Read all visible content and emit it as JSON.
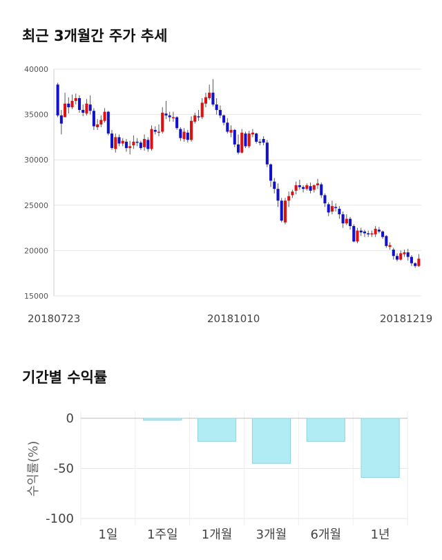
{
  "titles": {
    "candle": "최근 3개월간 주가 추세",
    "returns": "기간별 수익률"
  },
  "colors": {
    "up": "#dd1111",
    "down": "#1111cc",
    "wick": "#555555",
    "bar_fill": "#b1ebf4",
    "bar_stroke": "#8fd3e3",
    "grid": "#e6e6e6"
  },
  "chart_data": [
    {
      "type": "candlestick",
      "title": "최근 3개월간 주가 추세",
      "ylim": [
        15000,
        40000
      ],
      "yticks": [
        40000,
        35000,
        30000,
        25000,
        20000,
        15000
      ],
      "x_labels": [
        "20180723",
        "20181010",
        "20181219"
      ],
      "grid": true,
      "candles": [
        [
          38300,
          34900,
          38500,
          34700
        ],
        [
          34900,
          34000,
          35500,
          32800
        ],
        [
          34700,
          36200,
          37400,
          34700
        ],
        [
          36200,
          35800,
          36900,
          35100
        ],
        [
          35800,
          36500,
          37200,
          35600
        ],
        [
          36500,
          36800,
          37300,
          36100
        ],
        [
          36800,
          35500,
          37100,
          35200
        ],
        [
          35500,
          35200,
          36100,
          34800
        ],
        [
          35100,
          36200,
          36700,
          34900
        ],
        [
          36100,
          35400,
          37100,
          35000
        ],
        [
          35400,
          33700,
          35700,
          33300
        ],
        [
          33600,
          33900,
          34500,
          33300
        ],
        [
          33900,
          34400,
          34900,
          33600
        ],
        [
          34300,
          35300,
          35700,
          34100
        ],
        [
          35300,
          32900,
          35400,
          32700
        ],
        [
          32900,
          31300,
          33300,
          31100
        ],
        [
          31200,
          32500,
          32900,
          30800
        ],
        [
          32500,
          31800,
          32800,
          31500
        ],
        [
          31800,
          32100,
          32400,
          31500
        ],
        [
          32000,
          31300,
          32300,
          30900
        ],
        [
          31300,
          31500,
          32100,
          30600
        ],
        [
          31600,
          32000,
          32700,
          31200
        ],
        [
          32000,
          31900,
          32400,
          31500
        ],
        [
          31900,
          31300,
          32100,
          31100
        ],
        [
          31400,
          32300,
          32800,
          31000
        ],
        [
          32200,
          31200,
          32500,
          30900
        ],
        [
          31200,
          33400,
          33800,
          31000
        ],
        [
          33300,
          33100,
          33700,
          32800
        ],
        [
          33100,
          33100,
          33900,
          32600
        ],
        [
          33100,
          35200,
          35800,
          32900
        ],
        [
          35100,
          34900,
          36500,
          34500
        ],
        [
          34900,
          34700,
          35300,
          34200
        ],
        [
          34700,
          34700,
          35300,
          34200
        ],
        [
          34700,
          33500,
          34800,
          33300
        ],
        [
          33400,
          32400,
          33600,
          32100
        ],
        [
          32300,
          33100,
          33500,
          32000
        ],
        [
          33000,
          32200,
          33300,
          31900
        ],
        [
          32200,
          34300,
          34800,
          32000
        ],
        [
          34200,
          34900,
          35200,
          34000
        ],
        [
          34800,
          34700,
          35500,
          34300
        ],
        [
          34700,
          36300,
          36800,
          34500
        ],
        [
          36200,
          36900,
          37400,
          35800
        ],
        [
          36800,
          37400,
          38300,
          36600
        ],
        [
          37400,
          36100,
          38900,
          35900
        ],
        [
          36100,
          35500,
          36800,
          35000
        ],
        [
          35500,
          34900,
          36000,
          34600
        ],
        [
          34900,
          34100,
          35000,
          33800
        ],
        [
          34100,
          33100,
          34600,
          32900
        ],
        [
          33000,
          33300,
          33800,
          32500
        ],
        [
          33300,
          31700,
          33400,
          31400
        ],
        [
          31700,
          30800,
          32800,
          30600
        ],
        [
          30800,
          33000,
          33400,
          30700
        ],
        [
          32900,
          31500,
          33100,
          31300
        ],
        [
          31500,
          32900,
          33200,
          31300
        ],
        [
          32800,
          33000,
          33400,
          32500
        ],
        [
          32900,
          32000,
          33000,
          31800
        ],
        [
          32000,
          31900,
          32300,
          31600
        ],
        [
          32300,
          31900,
          32600,
          31600
        ],
        [
          31900,
          29500,
          32200,
          29200
        ],
        [
          29500,
          27700,
          29600,
          27000
        ],
        [
          27600,
          26800,
          28000,
          26300
        ],
        [
          26800,
          25500,
          27400,
          24800
        ],
        [
          25500,
          23300,
          25800,
          23100
        ],
        [
          23100,
          25500,
          25800,
          22900
        ],
        [
          25500,
          26000,
          26500,
          24800
        ],
        [
          26100,
          26500,
          26700,
          25800
        ],
        [
          26600,
          27200,
          27600,
          26200
        ],
        [
          27200,
          27000,
          27800,
          26700
        ],
        [
          27000,
          26800,
          27200,
          26400
        ],
        [
          26800,
          27200,
          27400,
          26600
        ],
        [
          27100,
          26600,
          27500,
          26300
        ],
        [
          26700,
          27200,
          27300,
          26400
        ],
        [
          27200,
          27400,
          27900,
          26800
        ],
        [
          27300,
          26100,
          27500,
          25800
        ],
        [
          26100,
          25200,
          26300,
          24800
        ],
        [
          25100,
          24200,
          25300,
          23800
        ],
        [
          24300,
          24900,
          25500,
          24000
        ],
        [
          24800,
          24700,
          25200,
          24300
        ],
        [
          24600,
          24000,
          24900,
          23500
        ],
        [
          24000,
          23000,
          24300,
          22500
        ],
        [
          23000,
          23500,
          24000,
          22800
        ],
        [
          23500,
          22700,
          23700,
          22300
        ],
        [
          22700,
          21000,
          22900,
          20900
        ],
        [
          21000,
          22200,
          22500,
          20800
        ],
        [
          22200,
          22000,
          22500,
          21600
        ],
        [
          22100,
          21900,
          22300,
          21500
        ],
        [
          21900,
          21800,
          22200,
          21500
        ],
        [
          21800,
          21900,
          22200,
          21500
        ],
        [
          21800,
          22400,
          22700,
          21500
        ],
        [
          22300,
          22100,
          22600,
          21900
        ],
        [
          22100,
          21500,
          22200,
          21300
        ],
        [
          21600,
          20500,
          21700,
          20300
        ],
        [
          20400,
          20600,
          20900,
          20100
        ],
        [
          20100,
          19400,
          20300,
          19000
        ],
        [
          19400,
          19000,
          19700,
          18800
        ],
        [
          19000,
          19700,
          20000,
          18900
        ],
        [
          19600,
          19800,
          20100,
          19300
        ],
        [
          19800,
          19300,
          20200,
          18900
        ],
        [
          19300,
          18600,
          19500,
          18300
        ],
        [
          18600,
          18300,
          18700,
          18100
        ],
        [
          18300,
          19100,
          19600,
          18200
        ]
      ]
    },
    {
      "type": "bar",
      "categories": [
        "1일",
        "1주일",
        "1개월",
        "3개월",
        "6개월",
        "1년"
      ],
      "values": [
        0,
        -2,
        -23,
        -45,
        -23,
        -59
      ],
      "ylabel": "수익률(%)",
      "ylim": [
        -100,
        0
      ],
      "yticks": [
        0,
        -50,
        -100
      ],
      "grid": true
    }
  ]
}
